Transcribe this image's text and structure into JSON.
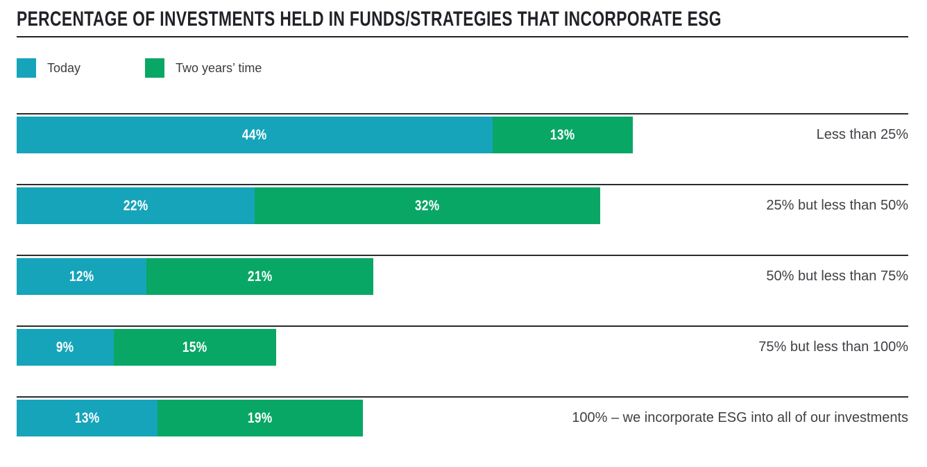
{
  "title": "PERCENTAGE OF INVESTMENTS HELD IN FUNDS/STRATEGIES THAT INCORPORATE ESG",
  "legend": [
    {
      "label": "Today",
      "color": "#16a4ba"
    },
    {
      "label": "Two years’ time",
      "color": "#09a765"
    }
  ],
  "chart_data": {
    "type": "bar",
    "orientation": "horizontal",
    "stacked": true,
    "title": "PERCENTAGE OF INVESTMENTS HELD IN FUNDS/STRATEGIES THAT INCORPORATE ESG",
    "unit": "%",
    "axis_max": 100,
    "grid": false,
    "legend_position": "top-left",
    "categories": [
      "Less than 25%",
      "25% but less than 50%",
      "50% but less than 75%",
      "75% but less than 100%",
      "100% – we incorporate ESG into all of our investments"
    ],
    "series": [
      {
        "name": "Today",
        "color": "#16a4ba",
        "values": [
          44,
          22,
          12,
          9,
          13
        ]
      },
      {
        "name": "Two years’ time",
        "color": "#09a765",
        "values": [
          13,
          32,
          21,
          15,
          19
        ]
      }
    ],
    "value_labels": [
      [
        "44%",
        "13%"
      ],
      [
        "22%",
        "32%"
      ],
      [
        "12%",
        "21%"
      ],
      [
        "9%",
        "15%"
      ],
      [
        "13%",
        "19%"
      ]
    ]
  }
}
